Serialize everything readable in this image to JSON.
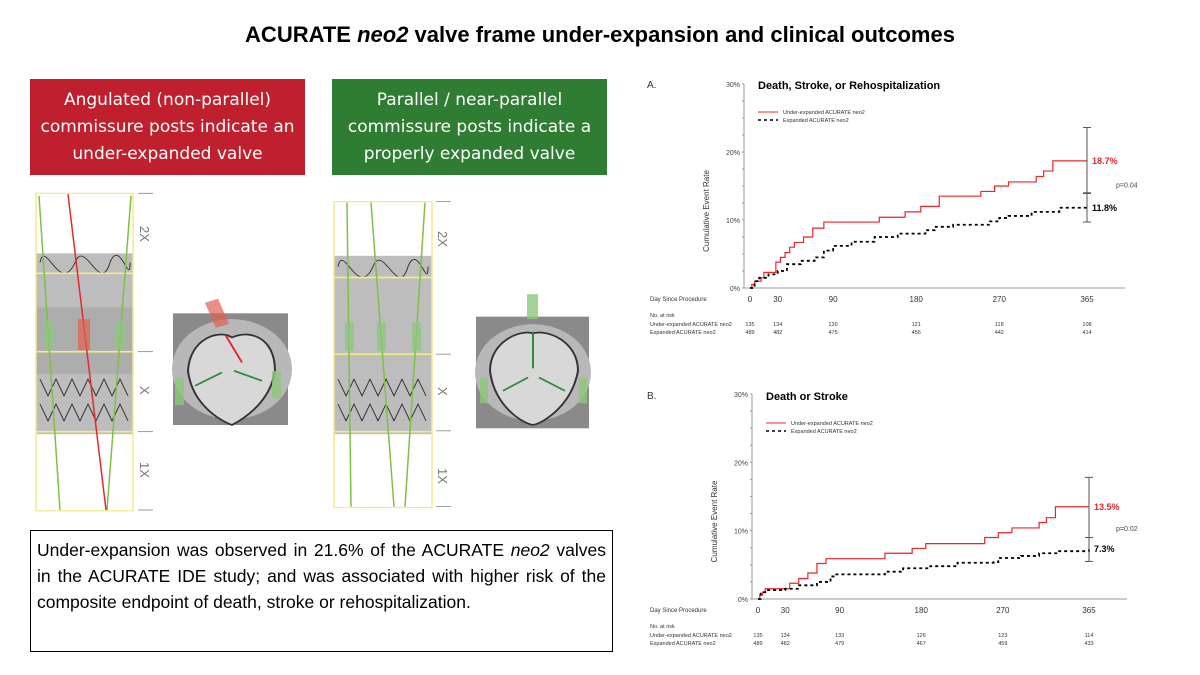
{
  "title_pre": "ACURATE ",
  "title_em": "neo2",
  "title_post": " valve frame under-expansion and clinical outcomes",
  "banners": {
    "left": "Angulated (non-parallel) commissure posts indicate an under-expanded valve",
    "right": "Parallel / near-parallel commissure posts indicate a properly expanded valve"
  },
  "scale_labels": [
    "2X",
    "X",
    "1X"
  ],
  "note": {
    "p1": "Under-expansion was observed in 21.6% of the ACURATE ",
    "em": "neo2",
    "p2": " valves in the ACURATE IDE study; and was associated with higher risk of the composite endpoint of death, stroke or rehospitalization."
  },
  "colors": {
    "red": "#e8262b",
    "black": "#000000",
    "banner_red": "#c0202e",
    "banner_green": "#2e7d32"
  },
  "chart_data": [
    {
      "type": "line",
      "panel": "A.",
      "title": "Death, Stroke, or Rehospitalization",
      "ylabel": "Cumulative Event Rate",
      "xlabel": "Day Since Procedure",
      "xticks": [
        0,
        30,
        90,
        180,
        270,
        365
      ],
      "yticks": [
        "0%",
        "10%",
        "20%",
        "30%"
      ],
      "xlim": [
        0,
        410
      ],
      "ylim": [
        0,
        30
      ],
      "legend": [
        "Under-expanded ACURATE neo2",
        "Expanded ACURATE neo2"
      ],
      "series": [
        {
          "name": "Under-expanded ACURATE neo2",
          "style": "solid-red",
          "end_label": "18.7%",
          "ci": [
            13.9,
            23.6
          ],
          "x": [
            0,
            2,
            5,
            12,
            15,
            28,
            33,
            38,
            43,
            48,
            58,
            68,
            80,
            140,
            168,
            185,
            205,
            250,
            265,
            280,
            310,
            318,
            328,
            365
          ],
          "y": [
            0,
            0.5,
            1,
            1.5,
            2.3,
            3.8,
            4.5,
            5.2,
            6,
            6.7,
            7.5,
            8.8,
            9.7,
            10.4,
            11.2,
            12,
            13.5,
            14.2,
            15,
            15.6,
            16.4,
            17.2,
            18.7,
            18.7
          ]
        },
        {
          "name": "Expanded ACURATE neo2",
          "style": "dashed-black",
          "end_label": "11.8%",
          "ci": [
            9.7,
            14.0
          ],
          "x": [
            0,
            5,
            10,
            20,
            30,
            40,
            55,
            70,
            80,
            90,
            110,
            135,
            160,
            190,
            200,
            220,
            260,
            270,
            280,
            305,
            335,
            365
          ],
          "y": [
            0,
            1,
            1.5,
            2,
            2.5,
            3.5,
            4,
            4.5,
            5.5,
            6.2,
            6.8,
            7.5,
            8,
            8.5,
            9,
            9.3,
            9.8,
            10.3,
            10.6,
            11.2,
            11.8,
            11.8
          ]
        }
      ],
      "p_value": "p=0.04",
      "at_risk_label": "No. at risk",
      "at_risk": [
        {
          "name": "Under-expanded ACURATE neo2",
          "values": [
            "135",
            "134",
            "130",
            "121",
            "118",
            "108"
          ]
        },
        {
          "name": "Expanded ACURATE neo2",
          "values": [
            "489",
            "482",
            "475",
            "456",
            "442",
            "414"
          ]
        }
      ]
    },
    {
      "type": "line",
      "panel": "B.",
      "title": "Death or Stroke",
      "ylabel": "Cumulative Event Rate",
      "xlabel": "Day Since Procedure",
      "xticks": [
        0,
        30,
        90,
        180,
        270,
        365
      ],
      "yticks": [
        "0%",
        "10%",
        "20%",
        "30%"
      ],
      "xlim": [
        0,
        410
      ],
      "ylim": [
        0,
        30
      ],
      "legend": [
        "Under-expanded ACURATE neo2",
        "Expanded ACURATE neo2"
      ],
      "series": [
        {
          "name": "Under-expanded ACURATE neo2",
          "style": "solid-red",
          "end_label": "13.5%",
          "ci": [
            9.0,
            17.8
          ],
          "x": [
            0,
            2,
            5,
            8,
            35,
            45,
            55,
            65,
            75,
            140,
            170,
            185,
            250,
            265,
            280,
            310,
            318,
            328,
            365
          ],
          "y": [
            0,
            0.6,
            1,
            1.5,
            2.3,
            3,
            3.8,
            5.2,
            5.9,
            6.7,
            7.4,
            8.1,
            9,
            9.7,
            10.4,
            11.2,
            11.9,
            13.5,
            13.5
          ]
        },
        {
          "name": "Expanded ACURATE neo2",
          "style": "dashed-black",
          "end_label": "7.3%",
          "ci": [
            5.5,
            9.0
          ],
          "x": [
            0,
            3,
            8,
            30,
            45,
            65,
            80,
            85,
            140,
            160,
            190,
            220,
            260,
            265,
            290,
            310,
            330,
            365
          ],
          "y": [
            0,
            1,
            1.3,
            1.5,
            2,
            2.5,
            3.3,
            3.6,
            4,
            4.5,
            4.8,
            5.3,
            5.4,
            6,
            6.3,
            6.7,
            7,
            7.3
          ]
        }
      ],
      "p_value": "p=0.02",
      "at_risk_label": "No. at risk",
      "at_risk": [
        {
          "name": "Under-expanded ACURATE neo2",
          "values": [
            "135",
            "134",
            "133",
            "126",
            "123",
            "114"
          ]
        },
        {
          "name": "Expanded ACURATE neo2",
          "values": [
            "489",
            "482",
            "479",
            "467",
            "459",
            "433"
          ]
        }
      ]
    }
  ]
}
